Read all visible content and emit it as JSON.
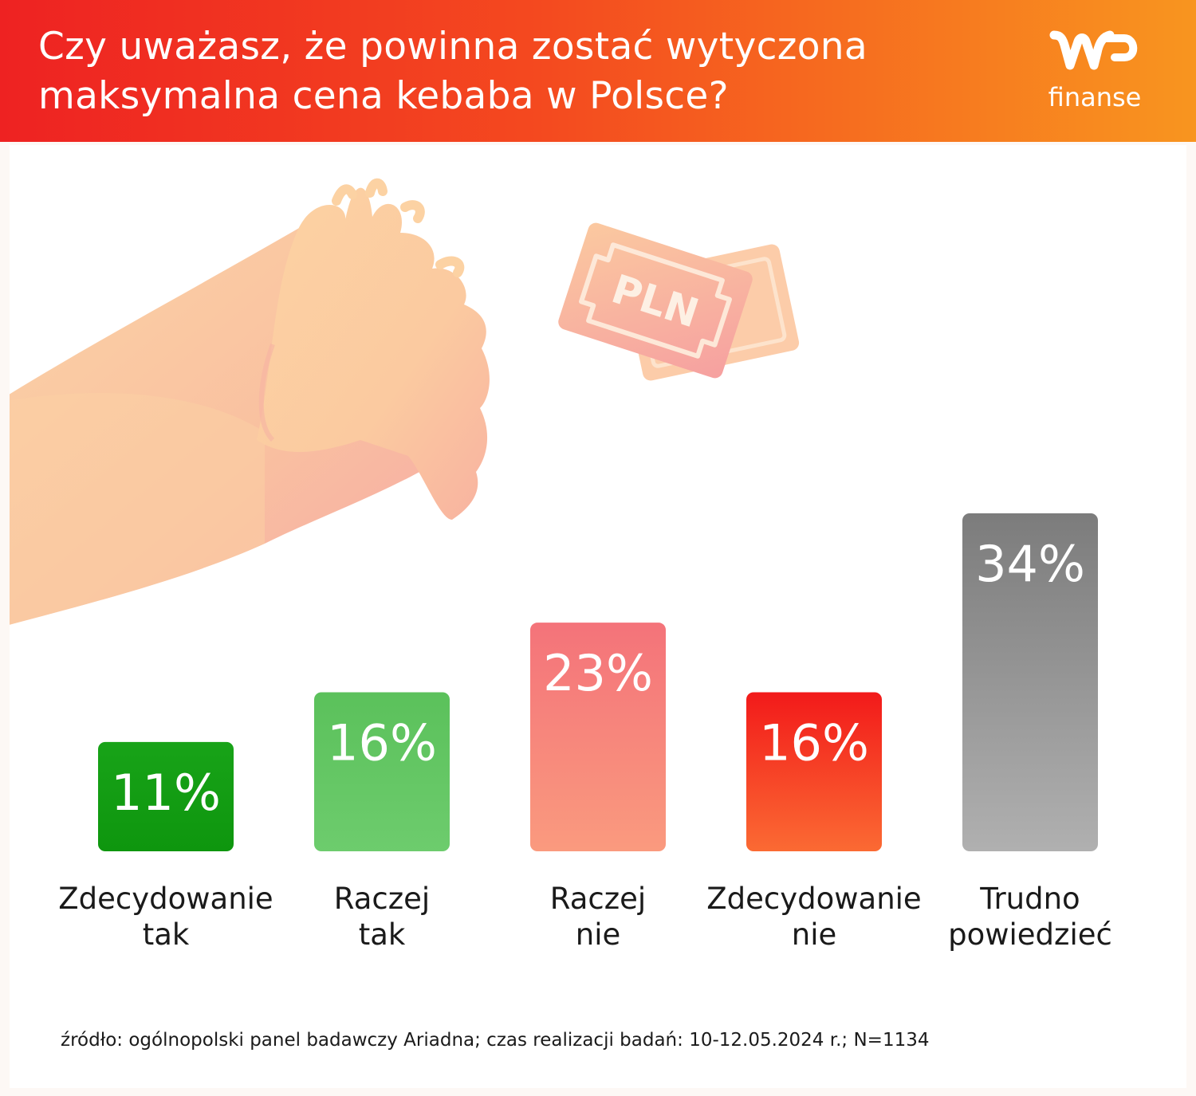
{
  "title": "Czy uważasz, że powinna zostać wytyczona maksymalna cena kebaba w Polsce?",
  "logo": {
    "text": "finanse",
    "icon": "wp-logo-icon"
  },
  "illustration": {
    "banknote_label": "PLN",
    "icons": [
      "fist-arm-icon",
      "banknote-icon"
    ]
  },
  "chart_data": {
    "type": "bar",
    "title": "Czy uważasz, że powinna zostać wytyczona maksymalna cena kebaba w Polsce?",
    "categories": [
      [
        "Zdecydowanie",
        "tak"
      ],
      [
        "Raczej",
        "tak"
      ],
      [
        "Raczej",
        "nie"
      ],
      [
        "Zdecydowanie",
        "nie"
      ],
      [
        "Trudno",
        "powiedzieć"
      ]
    ],
    "values": [
      11,
      16,
      23,
      16,
      34
    ],
    "value_labels": [
      "11%",
      "16%",
      "23%",
      "16%",
      "34%"
    ],
    "colors": [
      [
        "#18a318",
        "#0e960e"
      ],
      [
        "#5bc15b",
        "#6dcc6d"
      ],
      [
        "#f4737a",
        "#fa9a7e"
      ],
      [
        "#f21a1a",
        "#fb6a33"
      ],
      [
        "#7c7c7c",
        "#b0b0b0"
      ]
    ],
    "ylim": [
      0,
      34
    ],
    "grid": false,
    "legend": "none"
  },
  "source": "źródło: ogólnopolski panel badawczy Ariadna; czas realizacji badań: 10-12.05.2024 r.; N=1134"
}
